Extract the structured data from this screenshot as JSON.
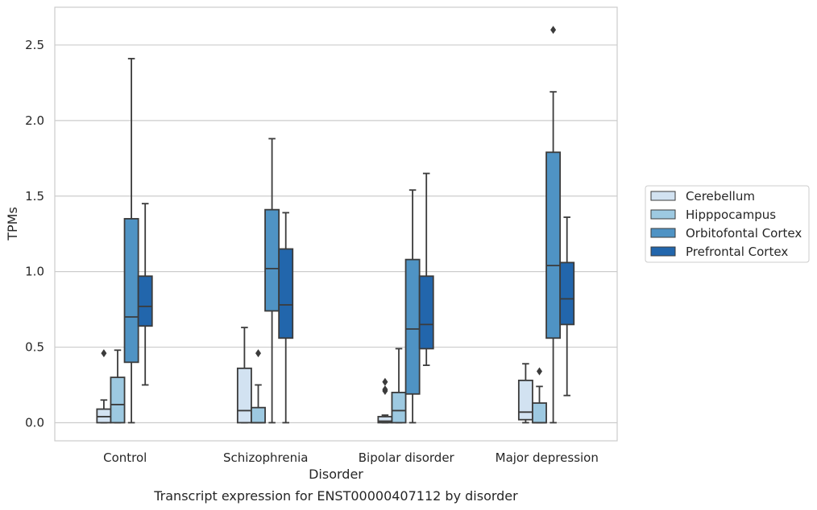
{
  "caption": "Transcript expression for ENST00000407112 by disorder",
  "chart_data": {
    "type": "boxplot",
    "xlabel": "Disorder",
    "ylabel": "TPMs",
    "ylim": [
      -0.12,
      2.75
    ],
    "yticks": [
      "0.0",
      "0.5",
      "1.0",
      "1.5",
      "2.0",
      "2.5"
    ],
    "grid": "horizontal",
    "legend_position": "right",
    "categories": [
      "Control",
      "Schizophrenia",
      "Bipolar disorder",
      "Major depression"
    ],
    "series": [
      {
        "name": "Cerebellum",
        "color": "#d2e2f1",
        "boxes": [
          {
            "whislo": 0.0,
            "q1": 0.0,
            "med": 0.04,
            "q3": 0.09,
            "whishi": 0.15,
            "fliers": [
              0.46
            ]
          },
          {
            "whislo": 0.0,
            "q1": 0.0,
            "med": 0.08,
            "q3": 0.36,
            "whishi": 0.63,
            "fliers": []
          },
          {
            "whislo": 0.0,
            "q1": 0.0,
            "med": 0.01,
            "q3": 0.04,
            "whishi": 0.05,
            "fliers": [
              0.21,
              0.22,
              0.27
            ]
          },
          {
            "whislo": 0.0,
            "q1": 0.02,
            "med": 0.07,
            "q3": 0.28,
            "whishi": 0.39,
            "fliers": []
          }
        ]
      },
      {
        "name": "Hipppocampus",
        "color": "#9dc9e1",
        "boxes": [
          {
            "whislo": 0.0,
            "q1": 0.0,
            "med": 0.12,
            "q3": 0.3,
            "whishi": 0.48,
            "fliers": []
          },
          {
            "whislo": 0.0,
            "q1": 0.0,
            "med": 0.0,
            "q3": 0.1,
            "whishi": 0.25,
            "fliers": [
              0.46
            ]
          },
          {
            "whislo": 0.0,
            "q1": 0.0,
            "med": 0.08,
            "q3": 0.2,
            "whishi": 0.49,
            "fliers": []
          },
          {
            "whislo": 0.0,
            "q1": 0.0,
            "med": 0.0,
            "q3": 0.13,
            "whishi": 0.24,
            "fliers": [
              0.34
            ]
          }
        ]
      },
      {
        "name": "Orbitofontal Cortex",
        "color": "#4f93c4",
        "boxes": [
          {
            "whislo": 0.0,
            "q1": 0.4,
            "med": 0.7,
            "q3": 1.35,
            "whishi": 2.41,
            "fliers": []
          },
          {
            "whislo": 0.0,
            "q1": 0.74,
            "med": 1.02,
            "q3": 1.41,
            "whishi": 1.88,
            "fliers": []
          },
          {
            "whislo": 0.0,
            "q1": 0.19,
            "med": 0.62,
            "q3": 1.08,
            "whishi": 1.54,
            "fliers": []
          },
          {
            "whislo": 0.0,
            "q1": 0.56,
            "med": 1.04,
            "q3": 1.79,
            "whishi": 2.19,
            "fliers": [
              2.6
            ]
          }
        ]
      },
      {
        "name": "Prefrontal Cortex",
        "color": "#2266ac",
        "boxes": [
          {
            "whislo": 0.25,
            "q1": 0.64,
            "med": 0.77,
            "q3": 0.97,
            "whishi": 1.45,
            "fliers": []
          },
          {
            "whislo": 0.0,
            "q1": 0.56,
            "med": 0.78,
            "q3": 1.15,
            "whishi": 1.39,
            "fliers": []
          },
          {
            "whislo": 0.38,
            "q1": 0.49,
            "med": 0.65,
            "q3": 0.97,
            "whishi": 1.65,
            "fliers": []
          },
          {
            "whislo": 0.18,
            "q1": 0.65,
            "med": 0.82,
            "q3": 1.06,
            "whishi": 1.36,
            "fliers": []
          }
        ]
      }
    ]
  }
}
